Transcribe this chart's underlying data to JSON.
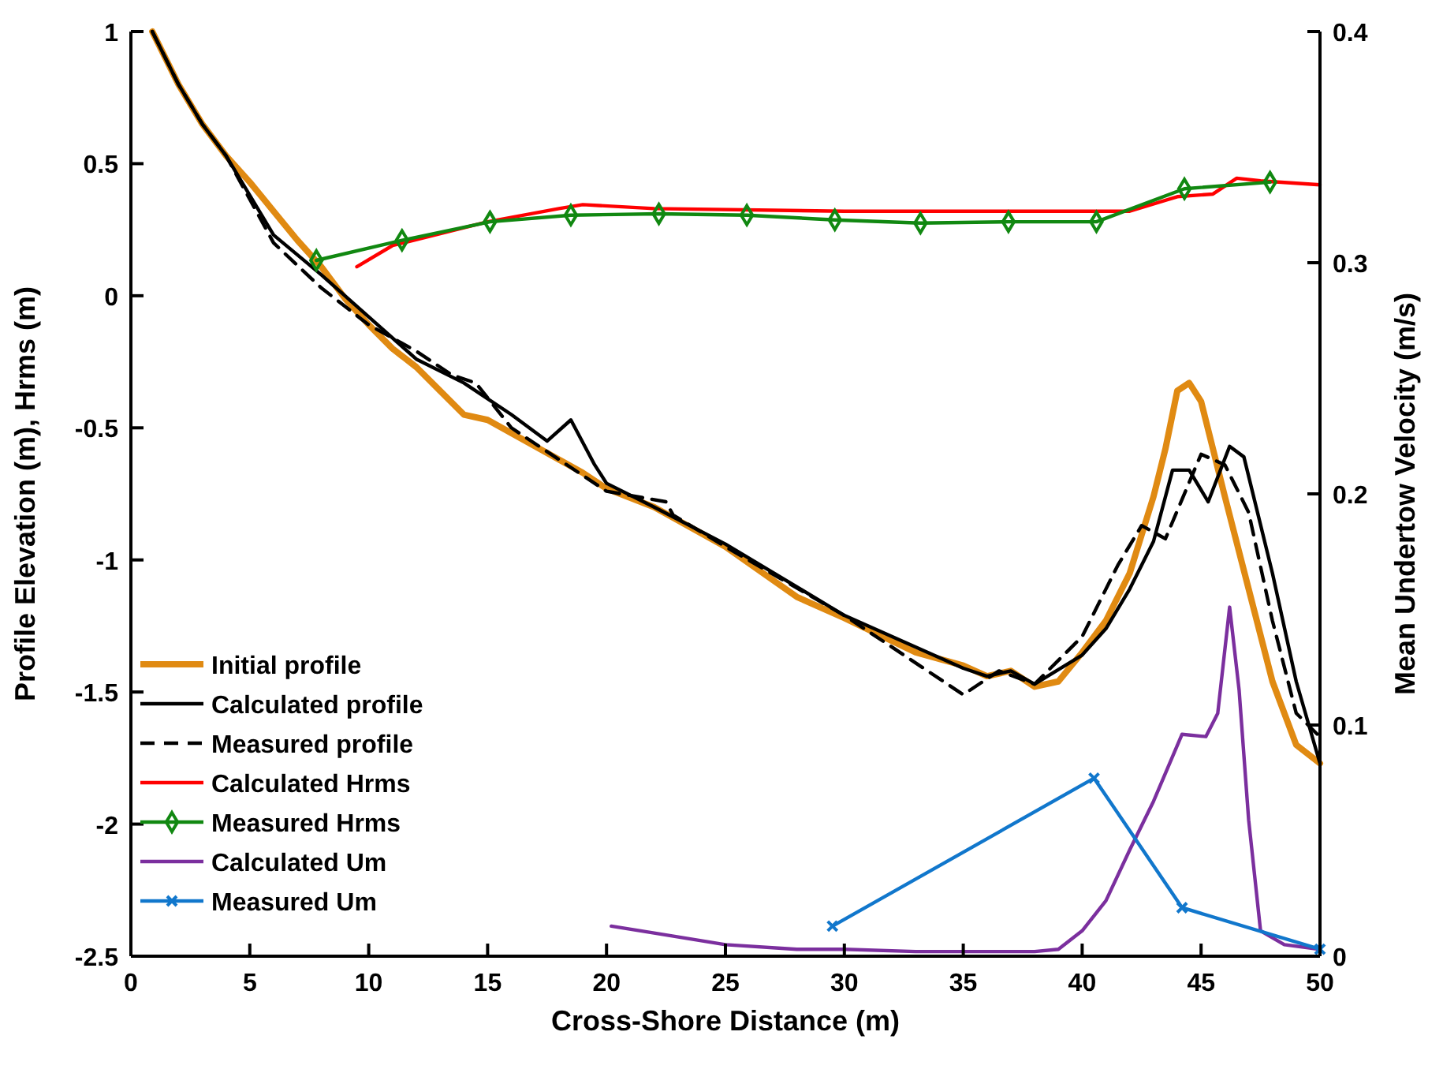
{
  "chart_data": {
    "type": "line",
    "xlabel": "Cross-Shore Distance (m)",
    "ylabel": "Profile Elevation (m), Hrms (m)",
    "y2label": "Mean Undertow Velocity (m/s)",
    "xlim": [
      0,
      50
    ],
    "xticks": [
      0,
      5,
      10,
      15,
      20,
      25,
      30,
      35,
      40,
      45,
      50
    ],
    "ylim": [
      -2.5,
      1
    ],
    "yticks": [
      -2.5,
      -2,
      -1.5,
      -1,
      -0.5,
      0,
      0.5,
      1
    ],
    "y2lim": [
      0,
      0.4
    ],
    "y2ticks": [
      0,
      0.1,
      0.2,
      0.3,
      0.4
    ],
    "grid": false,
    "legend": "bottom left",
    "series": [
      {
        "name": "Initial profile",
        "color": "#e08a12",
        "x": [
          0.9,
          2,
          3,
          4,
          5,
          6,
          7,
          8,
          9,
          10,
          11,
          12,
          13,
          14,
          15,
          16,
          17,
          18,
          19,
          20,
          22,
          25,
          28,
          30,
          33,
          35,
          36,
          37,
          38,
          39,
          40,
          41,
          42,
          43,
          43.5,
          44,
          44.5,
          45,
          46,
          47,
          48,
          49,
          50
        ],
        "values": [
          1.0,
          0.8,
          0.65,
          0.53,
          0.43,
          0.32,
          0.21,
          0.11,
          -0.01,
          -0.11,
          -0.2,
          -0.27,
          -0.36,
          -0.45,
          -0.47,
          -0.52,
          -0.57,
          -0.62,
          -0.67,
          -0.73,
          -0.8,
          -0.95,
          -1.14,
          -1.22,
          -1.35,
          -1.4,
          -1.44,
          -1.42,
          -1.48,
          -1.46,
          -1.35,
          -1.23,
          -1.05,
          -0.76,
          -0.58,
          -0.36,
          -0.33,
          -0.4,
          -0.76,
          -1.11,
          -1.46,
          -1.7,
          -1.77
        ]
      },
      {
        "name": "Calculated profile",
        "color": "#000000",
        "line_style": "solid",
        "x": [
          0.9,
          2,
          3,
          4,
          6,
          8,
          10,
          12,
          14,
          16,
          17.5,
          18.5,
          19.5,
          20,
          22,
          25,
          30,
          35,
          36,
          37,
          38,
          40,
          41,
          42,
          43,
          43.8,
          44.5,
          45.3,
          46.2,
          46.8,
          48,
          49,
          50
        ],
        "values": [
          1.0,
          0.8,
          0.65,
          0.53,
          0.23,
          0.08,
          -0.08,
          -0.24,
          -0.33,
          -0.45,
          -0.55,
          -0.47,
          -0.64,
          -0.71,
          -0.8,
          -0.94,
          -1.21,
          -1.41,
          -1.44,
          -1.42,
          -1.47,
          -1.36,
          -1.26,
          -1.11,
          -0.93,
          -0.66,
          -0.66,
          -0.78,
          -0.57,
          -0.61,
          -1.05,
          -1.46,
          -1.77
        ]
      },
      {
        "name": "Measured profile",
        "color": "#000000",
        "line_style": "dashed",
        "x": [
          0.9,
          2,
          3,
          4,
          6,
          8,
          10,
          12,
          13.5,
          14.5,
          16,
          18,
          20,
          22.5,
          22.8,
          25,
          30,
          35,
          36.5,
          38,
          40,
          41.5,
          42.5,
          43.5,
          45,
          46,
          47,
          48,
          49,
          50
        ],
        "values": [
          1.0,
          0.8,
          0.65,
          0.53,
          0.2,
          0.03,
          -0.11,
          -0.21,
          -0.3,
          -0.33,
          -0.5,
          -0.62,
          -0.74,
          -0.78,
          -0.83,
          -0.95,
          -1.21,
          -1.51,
          -1.42,
          -1.47,
          -1.29,
          -1.02,
          -0.87,
          -0.92,
          -0.6,
          -0.64,
          -0.82,
          -1.23,
          -1.58,
          -1.67
        ]
      },
      {
        "name": "Calculated Hrms",
        "color": "#ff0000",
        "x": [
          9.5,
          11,
          15,
          18,
          19,
          22,
          30,
          40,
          42,
          44,
          45.5,
          46.5,
          47.5,
          50
        ],
        "values": [
          0.11,
          0.19,
          0.28,
          0.33,
          0.345,
          0.33,
          0.32,
          0.32,
          0.32,
          0.375,
          0.385,
          0.445,
          0.435,
          0.42
        ]
      },
      {
        "name": "Measured Hrms",
        "color": "#118811",
        "marker": "diamond",
        "x": [
          7.8,
          11.4,
          15.1,
          18.5,
          22.2,
          25.9,
          29.6,
          33.2,
          36.9,
          40.6,
          44.3,
          47.9
        ],
        "values": [
          0.134,
          0.21,
          0.28,
          0.305,
          0.31,
          0.305,
          0.287,
          0.275,
          0.28,
          0.28,
          0.405,
          0.43
        ]
      },
      {
        "name": "Calculated Um",
        "color": "#7b2f9e",
        "axis": "y2",
        "x": [
          20.2,
          22,
          25,
          28,
          30,
          33,
          38,
          39,
          40,
          41,
          42,
          43,
          44.2,
          45.2,
          45.7,
          46.2,
          46.6,
          47,
          47.5,
          48.5,
          50
        ],
        "values": [
          0.013,
          0.01,
          0.005,
          0.003,
          0.003,
          0.002,
          0.002,
          0.003,
          0.011,
          0.024,
          0.046,
          0.067,
          0.096,
          0.095,
          0.105,
          0.151,
          0.115,
          0.059,
          0.011,
          0.005,
          0.003
        ]
      },
      {
        "name": "Measured Um",
        "color": "#1177cc",
        "axis": "y2",
        "marker": "cross",
        "x": [
          29.5,
          40.5,
          44.2,
          50
        ],
        "values": [
          0.013,
          0.077,
          0.021,
          0.003
        ]
      }
    ]
  }
}
